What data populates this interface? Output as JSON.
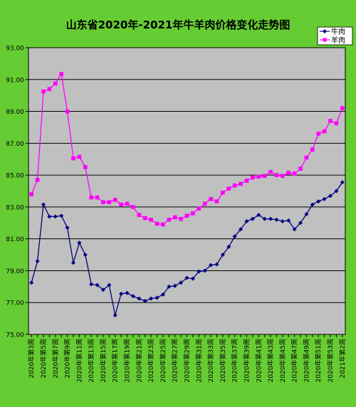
{
  "chart_data": {
    "type": "line",
    "title": "山东省2020年-2021年牛羊肉价格变化走势图",
    "xlabel": "",
    "ylabel": "",
    "ylim": [
      75.0,
      93.0
    ],
    "yticks": [
      "75.00",
      "77.00",
      "79.00",
      "81.00",
      "83.00",
      "85.00",
      "87.00",
      "89.00",
      "91.00",
      "93.00"
    ],
    "ytick_values": [
      75,
      77,
      79,
      81,
      83,
      85,
      87,
      89,
      91,
      93
    ],
    "grid": true,
    "legend_position": "top-right",
    "categories": [
      "2020年第3周",
      "2020年第4周",
      "2020年第5周",
      "2020年第6周",
      "2020年第7周",
      "2020年第8周",
      "2020年第9周",
      "2020年第10周",
      "2020年第11周",
      "2020年第12周",
      "2020年第13周",
      "2020年第14周",
      "2020年第15周",
      "2020年第16周",
      "2020年第17周",
      "2020年第18周",
      "2020年第19周",
      "2020年第20周",
      "2020年第21周",
      "2020年第22周",
      "2020年第23周",
      "2020年第24周",
      "2020年第25周",
      "2020年第26周",
      "2020年第27周",
      "2020年第28周",
      "2020年第29周",
      "2020年第30周",
      "2020年第31周",
      "2020年第32周",
      "2020年第33周",
      "2020年第34周",
      "2020年第35周",
      "2020年第36周",
      "2020年第37周",
      "2020年第38周",
      "2020年第39周",
      "2020年第40周",
      "2020年第41周",
      "2020年第42周",
      "2020年第43周",
      "2020年第44周",
      "2020年第45周",
      "2020年第46周",
      "2020年第47周",
      "2020年第48周",
      "2020年第49周",
      "2020年第50周",
      "2020年第51周",
      "2020年第52周",
      "2020年第53周",
      "2021年第1周",
      "2021年第2周"
    ],
    "tick_labels": [
      "2020年第3周",
      "2020年第5周",
      "2020年第7周",
      "2020年第9周",
      "2020年第11周",
      "2020年第13周",
      "2020年第15周",
      "2020年第17周",
      "2020年第19周",
      "2020年第21周",
      "2020年第23周",
      "2020年第25周",
      "2020年第27周",
      "2020年第29周",
      "2020年第31周",
      "2020年第33周",
      "2020年第35周",
      "2020年第37周",
      "2020年第39周",
      "2020年第41周",
      "2020年第43周",
      "2020年第45周",
      "2020年第47周",
      "2020年第49周",
      "2020年第51周",
      "2020年第53周",
      "2021年第2周"
    ],
    "series": [
      {
        "name": "牛肉",
        "color": "#000080",
        "marker": "diamond",
        "values": [
          78.25,
          79.6,
          83.15,
          82.4,
          82.4,
          82.45,
          81.7,
          79.5,
          80.75,
          80.0,
          78.15,
          78.1,
          77.8,
          78.1,
          76.2,
          77.55,
          77.6,
          77.4,
          77.25,
          77.1,
          77.25,
          77.3,
          77.5,
          78.0,
          78.05,
          78.25,
          78.55,
          78.5,
          78.95,
          79.0,
          79.35,
          79.4,
          80.0,
          80.5,
          81.15,
          81.6,
          82.1,
          82.25,
          82.5,
          82.25,
          82.25,
          82.2,
          82.1,
          82.15,
          81.6,
          82.0,
          82.55,
          83.15,
          83.35,
          83.5,
          83.7,
          84.0,
          84.55
        ]
      },
      {
        "name": "羊肉",
        "color": "#ff00ff",
        "marker": "square",
        "values": [
          83.8,
          84.7,
          90.25,
          90.4,
          90.75,
          91.35,
          89.0,
          86.05,
          86.15,
          85.5,
          83.6,
          83.6,
          83.3,
          83.3,
          83.45,
          83.15,
          83.2,
          83.0,
          82.5,
          82.3,
          82.2,
          81.95,
          81.9,
          82.2,
          82.35,
          82.25,
          82.45,
          82.6,
          82.9,
          83.2,
          83.5,
          83.35,
          83.9,
          84.15,
          84.35,
          84.45,
          84.65,
          84.85,
          84.9,
          84.95,
          85.2,
          85.0,
          84.95,
          85.15,
          85.1,
          85.4,
          86.1,
          86.6,
          87.6,
          87.75,
          88.4,
          88.25,
          89.2
        ]
      }
    ]
  }
}
